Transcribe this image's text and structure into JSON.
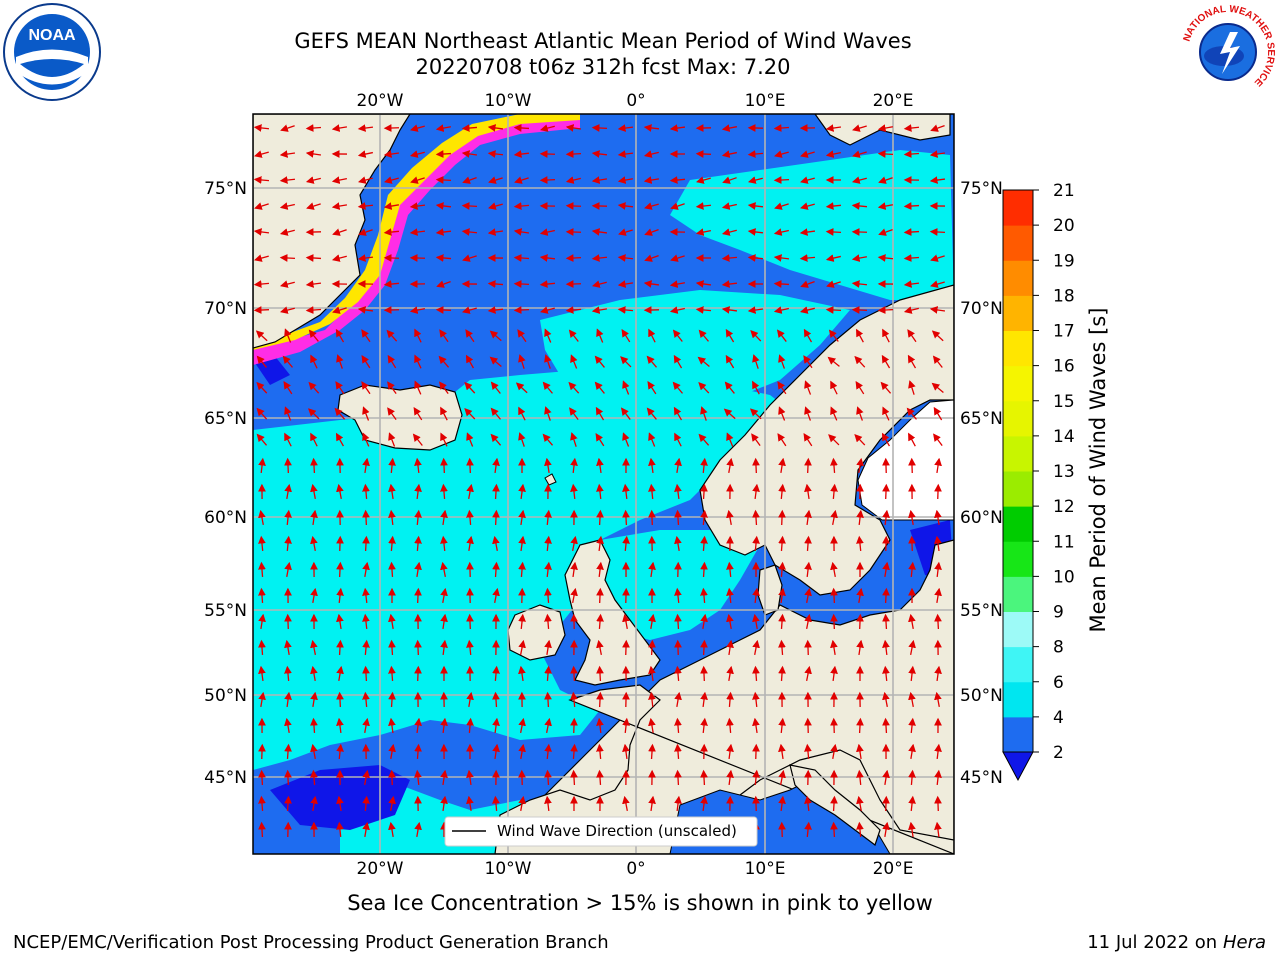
{
  "title": {
    "line1": "GEFS MEAN Northeast Atlantic Mean Period of Wind Waves",
    "line2": "20220708 t06z 312h fcst   Max: 7.20"
  },
  "map": {
    "lon_labels": [
      "20°W",
      "10°W",
      "0°",
      "10°E",
      "20°E"
    ],
    "lat_labels": [
      "75°N",
      "70°N",
      "65°N",
      "60°N",
      "55°N",
      "50°N",
      "45°N"
    ],
    "legend": "Wind Wave Direction (unscaled)",
    "colors": {
      "land": "#efecdc",
      "ocean_low": "#1e6cf0",
      "ocean_mid": "#00f2f2",
      "ocean_dark": "#0f16e8",
      "ice_pink": "#ff2de6",
      "ice_yellow": "#ffe600",
      "arrow": "#e10000",
      "grid": "#b4b4b4"
    }
  },
  "colorbar": {
    "title": "Mean Period of Wind Waves [s]",
    "ticks": [
      "2",
      "4",
      "6",
      "8",
      "9",
      "10",
      "11",
      "12",
      "13",
      "14",
      "15",
      "16",
      "17",
      "18",
      "19",
      "20",
      "21"
    ],
    "colors": [
      "#1e6cf0",
      "#00e6f0",
      "#3ff5f5",
      "#9dfaf7",
      "#4bf57d",
      "#17e617",
      "#00cc00",
      "#9bec00",
      "#c8f500",
      "#e6f500",
      "#f5f500",
      "#ffe600",
      "#ffb400",
      "#ff8c00",
      "#ff5a00",
      "#ff2d00",
      "#ff0000"
    ],
    "extend_color": "#0f16e8"
  },
  "notes": {
    "ice": "Sea Ice Concentration > 15% is shown in pink to yellow"
  },
  "footer": {
    "left": "NCEP/EMC/Verification Post Processing Product Generation Branch",
    "date": "11 Jul 2022 on ",
    "host": "Hera"
  },
  "logos": {
    "noaa": "NOAA",
    "nws_ring": "NATIONAL WEATHER SERVICE"
  }
}
